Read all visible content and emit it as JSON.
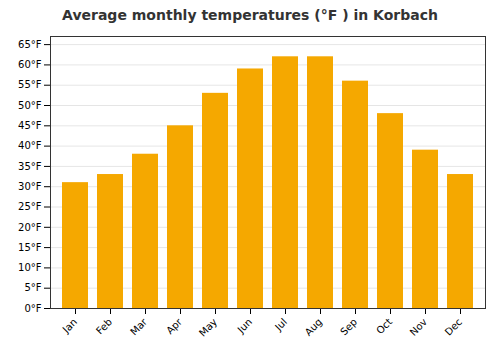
{
  "chart_data": {
    "type": "bar",
    "title": "Average monthly temperatures (°F ) in Korbach",
    "categories": [
      "Jan",
      "Feb",
      "Mar",
      "Apr",
      "May",
      "Jun",
      "Jul",
      "Aug",
      "Sep",
      "Oct",
      "Nov",
      "Dec"
    ],
    "values": [
      31,
      33,
      38,
      45,
      53,
      59,
      62,
      62,
      56,
      48,
      39,
      33
    ],
    "color": "#F5A800",
    "ylim": [
      0,
      67
    ],
    "yticks": [
      {
        "value": 0,
        "label": "0°F"
      },
      {
        "value": 5,
        "label": "5°F"
      },
      {
        "value": 10,
        "label": "10°F"
      },
      {
        "value": 15,
        "label": "15°F"
      },
      {
        "value": 20,
        "label": "20°F"
      },
      {
        "value": 25,
        "label": "25°F"
      },
      {
        "value": 30,
        "label": "30°F"
      },
      {
        "value": 35,
        "label": "35°F"
      },
      {
        "value": 40,
        "label": "40°F"
      },
      {
        "value": 45,
        "label": "45°F"
      },
      {
        "value": 50,
        "label": "50°F"
      },
      {
        "value": 55,
        "label": "55°F"
      },
      {
        "value": 60,
        "label": "60°F"
      },
      {
        "value": 65,
        "label": "65°F"
      }
    ],
    "grid": true
  }
}
